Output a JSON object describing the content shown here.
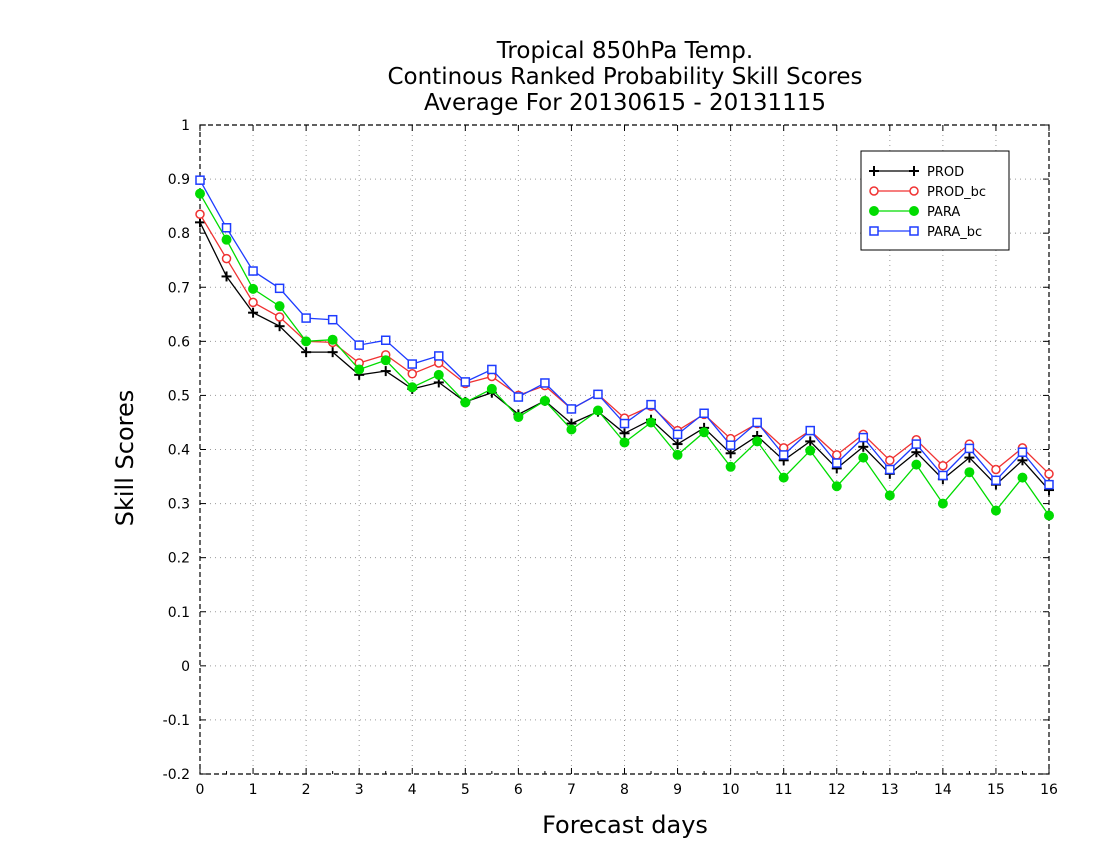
{
  "chart_data": {
    "type": "line",
    "title_lines": [
      "Tropical 850hPa Temp.",
      "Continous Ranked Probability Skill Scores",
      "Average For 20130615 - 20131115"
    ],
    "xlabel": "Forecast days",
    "ylabel": "Skill Scores",
    "xlim": [
      0,
      16
    ],
    "ylim": [
      -0.2,
      1
    ],
    "xticks": [
      "0",
      "1",
      "2",
      "3",
      "4",
      "5",
      "6",
      "7",
      "8",
      "9",
      "10",
      "11",
      "12",
      "13",
      "14",
      "15",
      "16"
    ],
    "yticks": [
      "-0.2",
      "-0.1",
      "0",
      "0.1",
      "0.2",
      "0.3",
      "0.4",
      "0.5",
      "0.6",
      "0.7",
      "0.8",
      "0.9",
      "1"
    ],
    "grid": true,
    "legend_position": "top-right",
    "x": [
      0,
      0.5,
      1,
      1.5,
      2,
      2.5,
      3,
      3.5,
      4,
      4.5,
      5,
      5.5,
      6,
      6.5,
      7,
      7.5,
      8,
      8.5,
      9,
      9.5,
      10,
      10.5,
      11,
      11.5,
      12,
      12.5,
      13,
      13.5,
      14,
      14.5,
      15,
      15.5,
      16
    ],
    "series": [
      {
        "name": "PROD",
        "color": "#000000",
        "marker": "plus",
        "values": [
          0.82,
          0.72,
          0.653,
          0.628,
          0.58,
          0.58,
          0.538,
          0.545,
          0.512,
          0.524,
          0.488,
          0.505,
          0.465,
          0.49,
          0.448,
          0.47,
          0.43,
          0.455,
          0.41,
          0.44,
          0.393,
          0.425,
          0.38,
          0.415,
          0.365,
          0.405,
          0.355,
          0.395,
          0.345,
          0.385,
          0.335,
          0.38,
          0.325
        ]
      },
      {
        "name": "PROD_bc",
        "color": "#f03232",
        "marker": "open-circle",
        "values": [
          0.835,
          0.753,
          0.672,
          0.645,
          0.6,
          0.598,
          0.56,
          0.575,
          0.54,
          0.56,
          0.522,
          0.535,
          0.5,
          0.518,
          0.475,
          0.502,
          0.458,
          0.48,
          0.435,
          0.465,
          0.42,
          0.448,
          0.403,
          0.435,
          0.39,
          0.428,
          0.38,
          0.418,
          0.37,
          0.41,
          0.363,
          0.403,
          0.355
        ]
      },
      {
        "name": "PARA",
        "color": "#00dc00",
        "marker": "filled-circle",
        "values": [
          0.873,
          0.788,
          0.697,
          0.665,
          0.6,
          0.603,
          0.548,
          0.565,
          0.515,
          0.538,
          0.487,
          0.512,
          0.46,
          0.49,
          0.437,
          0.472,
          0.413,
          0.45,
          0.39,
          0.432,
          0.368,
          0.415,
          0.348,
          0.398,
          0.332,
          0.385,
          0.315,
          0.372,
          0.3,
          0.358,
          0.287,
          0.348,
          0.278
        ]
      },
      {
        "name": "PARA_bc",
        "color": "#1e3cff",
        "marker": "open-square",
        "values": [
          0.898,
          0.81,
          0.73,
          0.698,
          0.643,
          0.64,
          0.593,
          0.602,
          0.558,
          0.573,
          0.525,
          0.548,
          0.497,
          0.523,
          0.475,
          0.502,
          0.448,
          0.483,
          0.428,
          0.467,
          0.408,
          0.45,
          0.39,
          0.435,
          0.375,
          0.422,
          0.363,
          0.41,
          0.352,
          0.402,
          0.343,
          0.395,
          0.335
        ]
      }
    ]
  }
}
